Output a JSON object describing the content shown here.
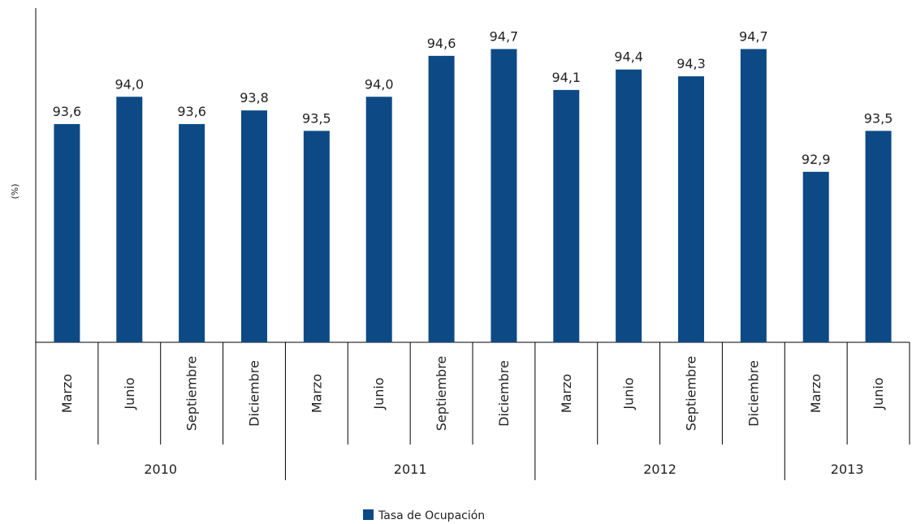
{
  "chart_data": {
    "type": "bar",
    "ylabel": "(%)",
    "xlabel": "",
    "categories": [
      "Marzo",
      "Junio",
      "Septiembre",
      "Diciembre",
      "Marzo",
      "Junio",
      "Septiembre",
      "Diciembre",
      "Marzo",
      "Junio",
      "Septiembre",
      "Diciembre",
      "Marzo",
      "Junio"
    ],
    "groups": [
      {
        "label": "2010",
        "count": 4
      },
      {
        "label": "2011",
        "count": 4
      },
      {
        "label": "2012",
        "count": 4
      },
      {
        "label": "2013",
        "count": 2
      }
    ],
    "series": [
      {
        "name": "Tasa de Ocupación",
        "color": "#0d4a85",
        "values": [
          93.6,
          94.0,
          93.6,
          93.8,
          93.5,
          94.0,
          94.6,
          94.7,
          94.1,
          94.4,
          94.3,
          94.7,
          92.9,
          93.5
        ],
        "labels": [
          "93,6",
          "94,0",
          "93,6",
          "93,8",
          "93,5",
          "94,0",
          "94,6",
          "94,7",
          "94,1",
          "94,4",
          "94,3",
          "94,7",
          "92,9",
          "93,5"
        ]
      }
    ],
    "ylim": [
      90.4,
      95.3
    ],
    "grid": false,
    "legend_position": "bottom-center"
  }
}
